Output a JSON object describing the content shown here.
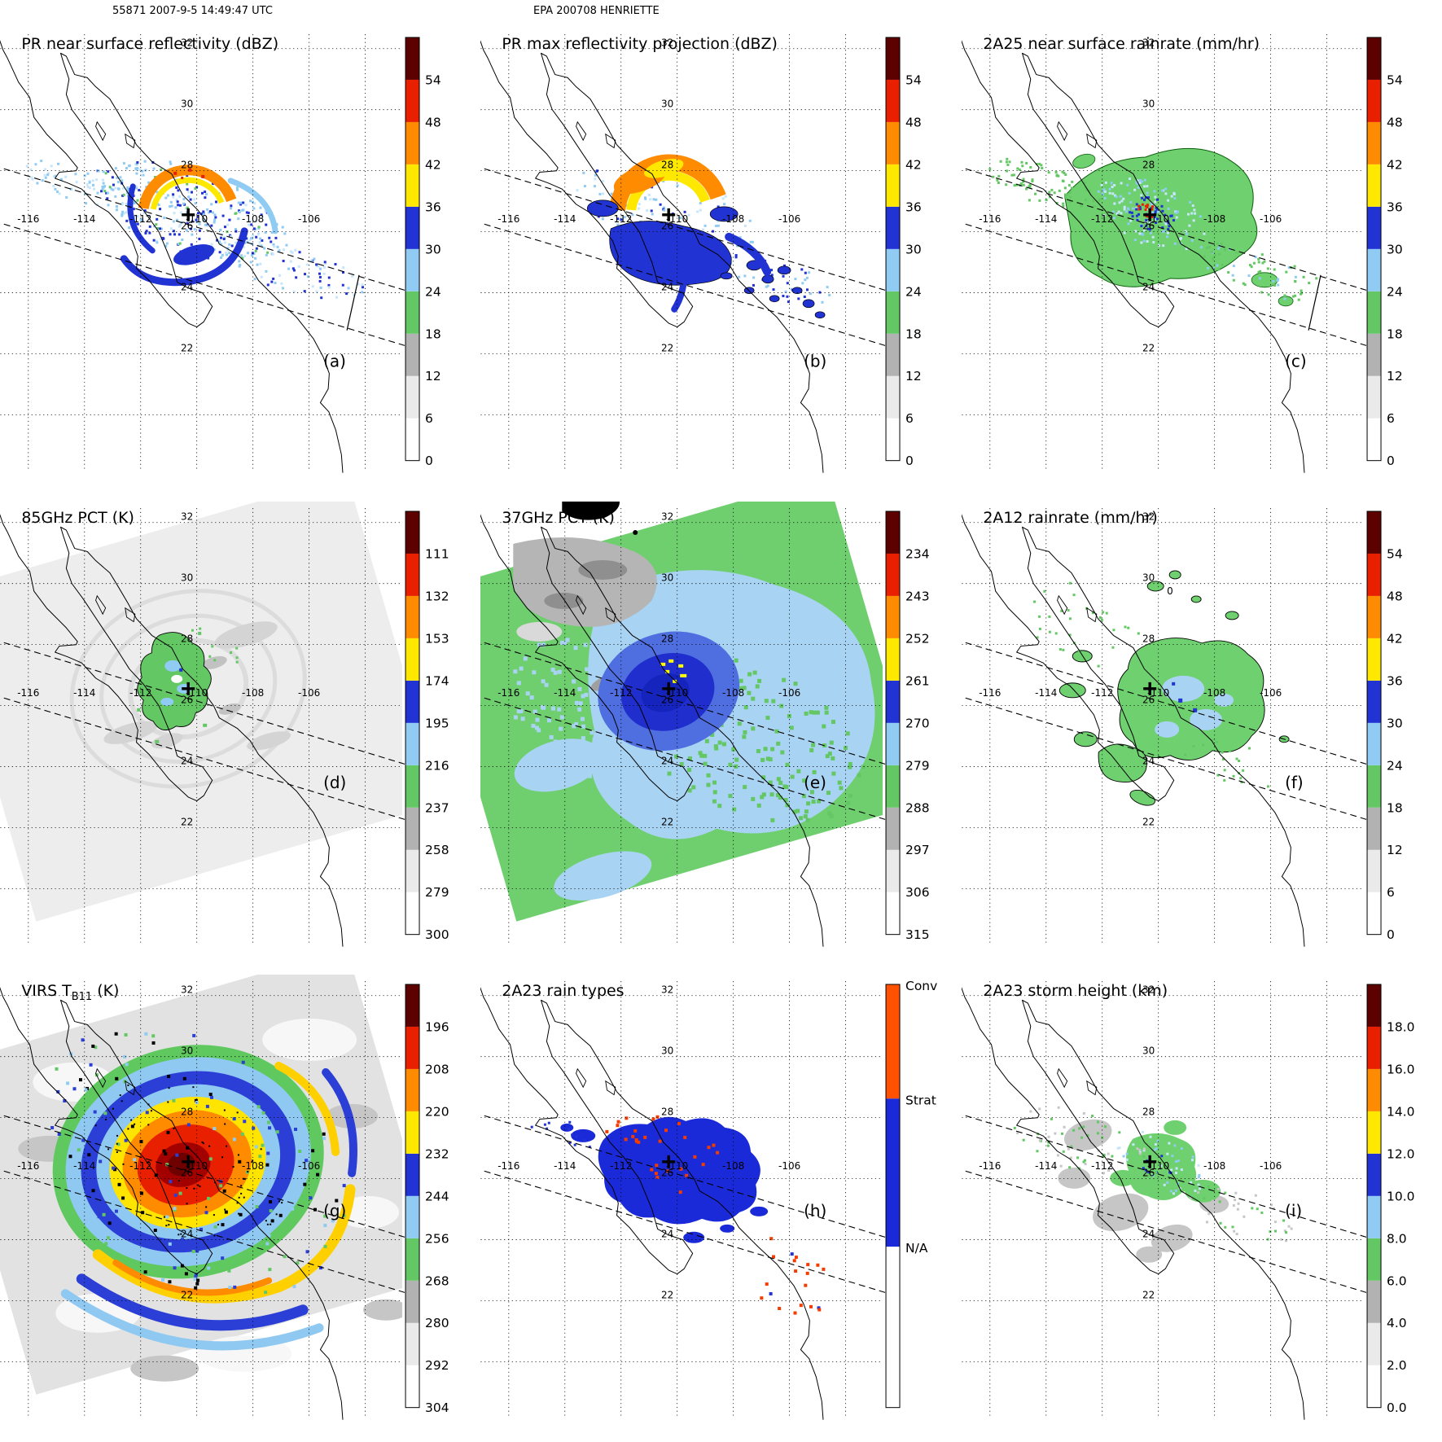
{
  "figure": {
    "header_left": "55871 2007-9-5 14:49:47 UTC",
    "header_center": "EPA 200708 HENRIETTE"
  },
  "geo": {
    "lon_labels": [
      "-116",
      "-114",
      "-112",
      "-110",
      "-108",
      "-106"
    ],
    "lat_labels": [
      "32",
      "30",
      "28",
      "26",
      "24",
      "22"
    ]
  },
  "panels": [
    {
      "letter": "(a)",
      "title_pre": "PR near surface reflectivity (dBZ)",
      "title_sub": "",
      "title_post": "",
      "colorbar": {
        "kind": "numeric",
        "labels": [
          "0",
          "6",
          "12",
          "18",
          "24",
          "30",
          "36",
          "42",
          "48",
          "54"
        ],
        "colors": [
          "#ffffff",
          "#eaeaea",
          "#b2b2b2",
          "#63c763",
          "#8fcbf2",
          "#2233d4",
          "#ffe800",
          "#ff8c00",
          "#e82000",
          "#5c0000"
        ]
      }
    },
    {
      "letter": "(b)",
      "title_pre": "PR max reflectivity projection (dBZ)",
      "title_sub": "",
      "title_post": "",
      "colorbar": {
        "kind": "numeric",
        "labels": [
          "0",
          "6",
          "12",
          "18",
          "24",
          "30",
          "36",
          "42",
          "48",
          "54"
        ],
        "colors": [
          "#ffffff",
          "#eaeaea",
          "#b2b2b2",
          "#63c763",
          "#8fcbf2",
          "#2233d4",
          "#ffe800",
          "#ff8c00",
          "#e82000",
          "#5c0000"
        ]
      }
    },
    {
      "letter": "(c)",
      "title_pre": "2A25 near surface rainrate (mm/hr)",
      "title_sub": "",
      "title_post": "",
      "colorbar": {
        "kind": "numeric",
        "labels": [
          "0",
          "6",
          "12",
          "18",
          "24",
          "30",
          "36",
          "42",
          "48",
          "54"
        ],
        "colors": [
          "#ffffff",
          "#eaeaea",
          "#b2b2b2",
          "#63c763",
          "#8fcbf2",
          "#2233d4",
          "#ffe800",
          "#ff8c00",
          "#e82000",
          "#5c0000"
        ]
      }
    },
    {
      "letter": "(d)",
      "title_pre": "85GHz PCT (K)",
      "title_sub": "",
      "title_post": "",
      "colorbar": {
        "kind": "numeric",
        "labels": [
          "300",
          "279",
          "258",
          "237",
          "216",
          "195",
          "174",
          "153",
          "132",
          "111"
        ],
        "colors": [
          "#ffffff",
          "#eaeaea",
          "#b2b2b2",
          "#63c763",
          "#8fcbf2",
          "#2233d4",
          "#ffe800",
          "#ff8c00",
          "#e82000",
          "#5c0000"
        ]
      }
    },
    {
      "letter": "(e)",
      "title_pre": "37GHz PCT (K)",
      "title_sub": "",
      "title_post": "",
      "colorbar": {
        "kind": "numeric",
        "labels": [
          "315",
          "306",
          "297",
          "288",
          "279",
          "270",
          "261",
          "252",
          "243",
          "234"
        ],
        "colors": [
          "#ffffff",
          "#eaeaea",
          "#b2b2b2",
          "#63c763",
          "#8fcbf2",
          "#2233d4",
          "#ffe800",
          "#ff8c00",
          "#e82000",
          "#5c0000"
        ]
      }
    },
    {
      "letter": "(f)",
      "title_pre": "2A12 rainrate (mm/hr)",
      "title_sub": "",
      "title_post": "",
      "annotation": "0",
      "colorbar": {
        "kind": "numeric",
        "labels": [
          "0",
          "6",
          "12",
          "18",
          "24",
          "30",
          "36",
          "42",
          "48",
          "54"
        ],
        "colors": [
          "#ffffff",
          "#eaeaea",
          "#b2b2b2",
          "#63c763",
          "#8fcbf2",
          "#2233d4",
          "#ffe800",
          "#ff8c00",
          "#e82000",
          "#5c0000"
        ]
      }
    },
    {
      "letter": "(g)",
      "title_pre": "VIRS T",
      "title_sub": "B11",
      "title_post": " (K)",
      "colorbar": {
        "kind": "numeric",
        "labels": [
          "304",
          "292",
          "280",
          "268",
          "256",
          "244",
          "232",
          "220",
          "208",
          "196"
        ],
        "colors": [
          "#ffffff",
          "#eaeaea",
          "#b2b2b2",
          "#63c763",
          "#8fcbf2",
          "#2233d4",
          "#ffe800",
          "#ff8c00",
          "#e82000",
          "#5c0000"
        ]
      }
    },
    {
      "letter": "(h)",
      "title_pre": "2A23 rain types",
      "title_sub": "",
      "title_post": "",
      "colorbar": {
        "kind": "categorical",
        "segments": [
          {
            "label": "Conv",
            "color": "#ff5100",
            "frac": 0.27
          },
          {
            "label": "Strat",
            "color": "#1a2ad8",
            "frac": 0.35
          },
          {
            "label": "N/A",
            "color": "#ffffff",
            "frac": 0.38
          }
        ]
      }
    },
    {
      "letter": "(i)",
      "title_pre": "2A23 storm height (km)",
      "title_sub": "",
      "title_post": "",
      "colorbar": {
        "kind": "numeric",
        "labels": [
          "0.0",
          "2.0",
          "4.0",
          "6.0",
          "8.0",
          "10.0",
          "12.0",
          "14.0",
          "16.0",
          "18.0"
        ],
        "colors": [
          "#ffffff",
          "#eaeaea",
          "#b2b2b2",
          "#63c763",
          "#8fcbf2",
          "#2233d4",
          "#ffe800",
          "#ff8c00",
          "#e82000",
          "#5c0000"
        ]
      }
    }
  ],
  "chart_data": [
    {
      "panel": "(a)",
      "type": "heatmap",
      "title": "PR near surface reflectivity (dBZ)",
      "units": "dBZ",
      "colorbar_ticks": [
        0,
        6,
        12,
        18,
        24,
        30,
        36,
        42,
        48,
        54
      ],
      "lon_gridlines": [
        -116,
        -114,
        -112,
        -110,
        -108,
        -106
      ],
      "lat_gridlines": [
        22,
        24,
        26,
        28,
        30,
        32
      ],
      "extent_lon": [
        -117,
        -103
      ],
      "extent_lat": [
        19,
        33
      ],
      "storm_center_lon_lat": [
        -110.3,
        26.5
      ],
      "description": "Narrow tilted TRMM PR swath; spiral rain bands 24-36 dBZ (blues) around eye, 36-48 dBZ yellow/orange arc NW of center, scattered light-blue echoes along swath."
    },
    {
      "panel": "(b)",
      "type": "heatmap",
      "title": "PR max reflectivity projection (dBZ)",
      "units": "dBZ",
      "colorbar_ticks": [
        0,
        6,
        12,
        18,
        24,
        30,
        36,
        42,
        48,
        54
      ],
      "storm_center_lon_lat": [
        -110.3,
        26.5
      ],
      "description": "Column-maximum reflectivity in same swath; broader yellow/orange eyewall arc, solid 30-36 dBZ blue region south/east of eye, scattered black-outlined blue echoes to the east."
    },
    {
      "panel": "(c)",
      "type": "heatmap",
      "title": "2A25 near surface rainrate (mm/hr)",
      "units": "mm/hr",
      "colorbar_ticks": [
        0,
        6,
        12,
        18,
        24,
        30,
        36,
        42,
        48,
        54
      ],
      "storm_center_lon_lat": [
        -110.3,
        26.5
      ],
      "description": "Rain swath mostly 0-6 mm/hr (green) with embedded 6-30 mm/hr light blue/blue pixels and a few >42 mm/hr red pixels near the eyewall."
    },
    {
      "panel": "(d)",
      "type": "heatmap",
      "title": "85GHz PCT (K)",
      "units": "K",
      "colorbar_ticks": [
        111,
        132,
        153,
        174,
        195,
        216,
        237,
        258,
        279,
        300
      ],
      "storm_center_lon_lat": [
        -110.3,
        26.5
      ],
      "description": "Wide TMI swath, mostly 258-300 K (white/light gray); ice-scattering depression 216-237 K (green blob) with 195-216 K (light blue) pixels around the storm core."
    },
    {
      "panel": "(e)",
      "type": "heatmap",
      "title": "37GHz PCT (K)",
      "units": "K",
      "colorbar_ticks": [
        234,
        243,
        252,
        261,
        270,
        279,
        288,
        297,
        306,
        315
      ],
      "storm_center_lon_lat": [
        -110.3,
        26.5
      ],
      "description": "Ocean background 279-288 K (green), moist region 270-279 K (light blue), eyewall ring 261-270 K (dark blue) with a few 252-261 K (yellow) pixels; gray land signatures NW."
    },
    {
      "panel": "(f)",
      "type": "heatmap",
      "title": "2A12 rainrate (mm/hr)",
      "units": "mm/hr",
      "colorbar_ticks": [
        0,
        6,
        12,
        18,
        24,
        30,
        36,
        42,
        48,
        54
      ],
      "storm_center_lon_lat": [
        -110.3,
        26.5
      ],
      "description": "TMI rain: broad 0-6 mm/hr (green) shield around center with embedded 6-18 mm/hr (light blue/blue) pixels; smaller green patches SW and N."
    },
    {
      "panel": "(g)",
      "type": "heatmap",
      "title": "VIRS TB11 (K)",
      "units": "K",
      "colorbar_ticks": [
        196,
        208,
        220,
        232,
        244,
        256,
        268,
        280,
        292,
        304
      ],
      "storm_center_lon_lat": [
        -110.3,
        26.5
      ],
      "description": "IR brightness temperature: large cold CDO <220 K (red/orange core, dark red eye region), spiral bands 232-268 K (yellow-blue), warm cloud-free air >280 K (gray/white) outside."
    },
    {
      "panel": "(h)",
      "type": "heatmap",
      "title": "2A23 rain types",
      "categories": [
        "Conv",
        "Strat",
        "N/A"
      ],
      "storm_center_lon_lat": [
        -110.3,
        26.5
      ],
      "description": "Rain classification inside PR swath: predominantly stratiform (blue) with scattered convective (orange-red) pixels near the eyewall and along the Sinaloa coast."
    },
    {
      "panel": "(i)",
      "type": "heatmap",
      "title": "2A23 storm height (km)",
      "units": "km",
      "colorbar_ticks": [
        0,
        2,
        4,
        6,
        8,
        10,
        12,
        14,
        16,
        18
      ],
      "storm_center_lon_lat": [
        -110.3,
        26.5
      ],
      "description": "Echo-top heights mostly 4-10 km: gray 4-6 km patches, green 6-8 km, light blue 8-10 km pixels near the storm center."
    }
  ]
}
